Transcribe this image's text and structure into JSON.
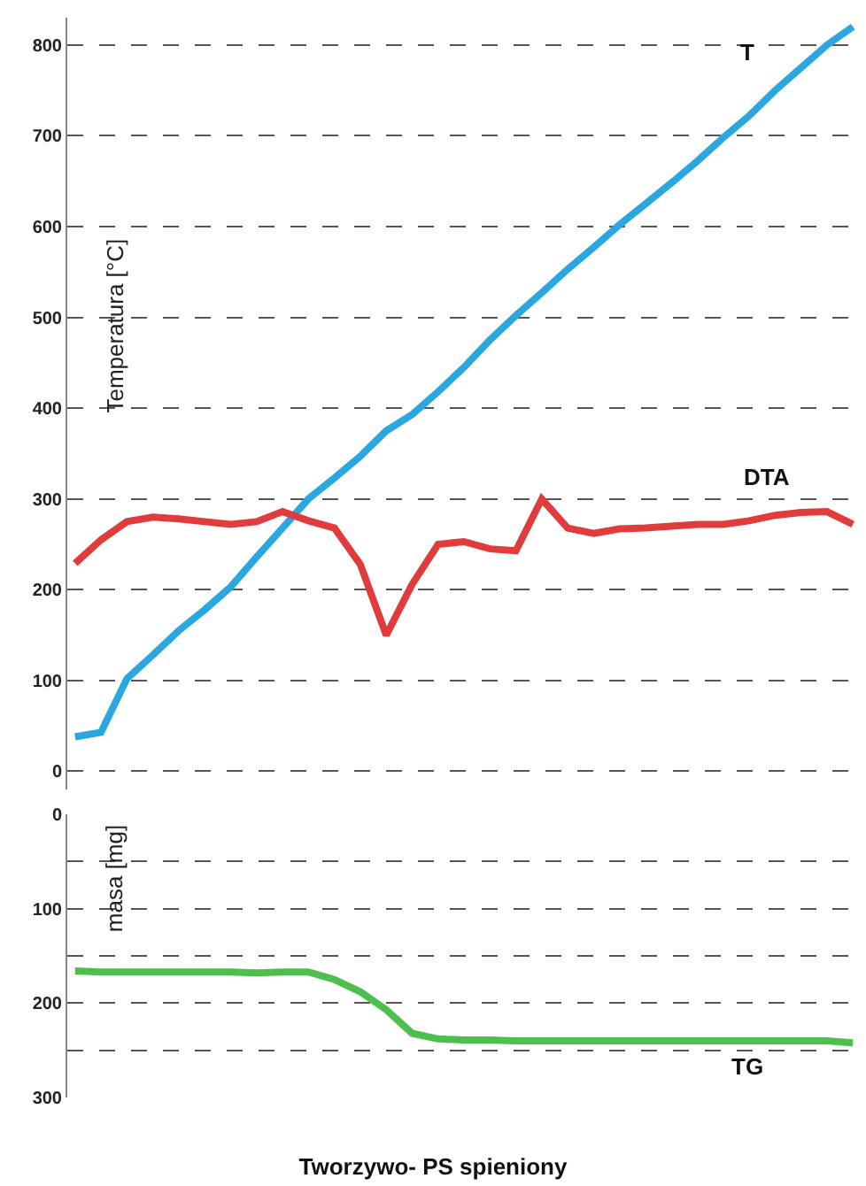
{
  "chart_data": [
    {
      "type": "line",
      "ylabel": "Temperatura [°C]",
      "categories": [
        null,
        null,
        null,
        null,
        null,
        null,
        null,
        null,
        null,
        null,
        null,
        null,
        null,
        null,
        null,
        null,
        null,
        null,
        null,
        null,
        null,
        null,
        null,
        null,
        null,
        null,
        null,
        null,
        null,
        null,
        null
      ],
      "series": [
        {
          "name": "T",
          "color": "#2aa7df",
          "values": [
            38,
            43,
            102,
            128,
            155,
            178,
            203,
            236,
            268,
            300,
            323,
            347,
            375,
            393,
            418,
            445,
            475,
            502,
            527,
            553,
            577,
            602,
            625,
            648,
            672,
            698,
            722,
            750,
            775,
            800,
            820
          ]
        },
        {
          "name": "DTA",
          "color": "#e03c3c",
          "values": [
            229,
            255,
            275,
            280,
            278,
            275,
            272,
            275,
            286,
            276,
            268,
            228,
            150,
            206,
            250,
            253,
            245,
            243,
            300,
            268,
            262,
            267,
            268,
            270,
            272,
            272,
            276,
            282,
            285,
            286,
            272
          ]
        }
      ],
      "ylim": [
        -20,
        830
      ],
      "yticks": [
        0,
        100,
        200,
        300,
        400,
        500,
        600,
        700,
        800
      ],
      "grid": "y",
      "tick_labels": "y",
      "legend": false,
      "line_style": "solid",
      "marker": "none"
    },
    {
      "type": "line",
      "title": "Tworzywo- PS spieniony",
      "ylabel": "masa [mg]",
      "categories": [
        null,
        null,
        null,
        null,
        null,
        null,
        null,
        null,
        null,
        null,
        null,
        null,
        null,
        null,
        null,
        null,
        null,
        null,
        null,
        null,
        null,
        null,
        null,
        null,
        null,
        null,
        null,
        null,
        null,
        null,
        null
      ],
      "series": [
        {
          "name": "TG",
          "color": "#4cbf4c",
          "values": [
            166,
            167,
            167,
            167,
            167,
            167,
            167,
            168,
            167,
            167,
            175,
            188,
            207,
            232,
            238,
            239,
            239,
            240,
            240,
            240,
            240,
            240,
            240,
            240,
            240,
            240,
            240,
            240,
            240,
            240,
            242
          ]
        }
      ],
      "ylim": [
        300,
        0
      ],
      "yticks": [
        0,
        {
          "value": 50,
          "label": null
        },
        100,
        {
          "value": 150,
          "label": null
        },
        200,
        {
          "value": 250,
          "label": null
        },
        300
      ],
      "grid": "y",
      "tick_labels": "y",
      "legend": false,
      "line_style": "solid",
      "marker": "none"
    }
  ]
}
